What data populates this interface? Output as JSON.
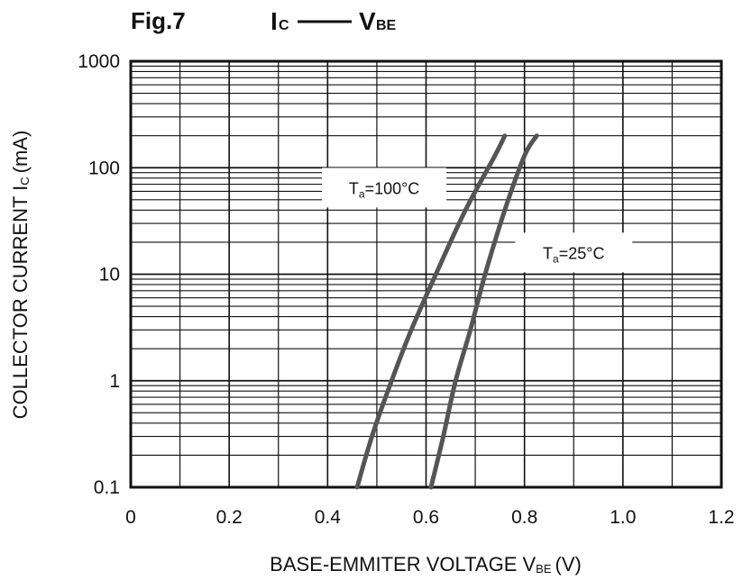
{
  "chart_data": {
    "type": "line",
    "title": {
      "fig": "Fig.7",
      "y_main": "I",
      "y_sub": "C",
      "x_main": "V",
      "x_sub": "BE"
    },
    "xlabel": {
      "main": "BASE-EMMITER VOLTAGE V",
      "sub": "BE",
      "unit": "(V)"
    },
    "ylabel": {
      "main": "COLLECTOR CURRENT I",
      "sub": "C",
      "unit": "(mA)"
    },
    "xlim": [
      0,
      1.2
    ],
    "ylim": [
      0.1,
      1000
    ],
    "y_scale": "log",
    "grid": true,
    "x_ticks": [
      "0",
      "0.2",
      "0.4",
      "0.6",
      "0.8",
      "1.0",
      "1.2"
    ],
    "x_tick_values": [
      0,
      0.2,
      0.4,
      0.6,
      0.8,
      1.0,
      1.2
    ],
    "y_ticks": [
      "0.1",
      "1",
      "10",
      "100",
      "1000"
    ],
    "y_tick_values": [
      0.1,
      1,
      10,
      100,
      1000
    ],
    "series": [
      {
        "label_main": "T",
        "label_sub": "a",
        "label_rest": "=100°C",
        "color": "#555555",
        "x": [
          0.46,
          0.49,
          0.53,
          0.57,
          0.62,
          0.68,
          0.74,
          0.76
        ],
        "y": [
          0.1,
          0.3,
          1,
          3,
          10,
          40,
          130,
          200
        ]
      },
      {
        "label_main": "T",
        "label_sub": "a",
        "label_rest": "=25°C",
        "color": "#555555",
        "x": [
          0.61,
          0.635,
          0.66,
          0.69,
          0.72,
          0.76,
          0.8,
          0.825
        ],
        "y": [
          0.1,
          0.3,
          1,
          3,
          10,
          40,
          130,
          200
        ]
      }
    ],
    "annotations": [
      {
        "series": 0,
        "x": 0.515,
        "y": 65
      },
      {
        "series": 1,
        "x": 0.9,
        "y": 16
      }
    ]
  }
}
